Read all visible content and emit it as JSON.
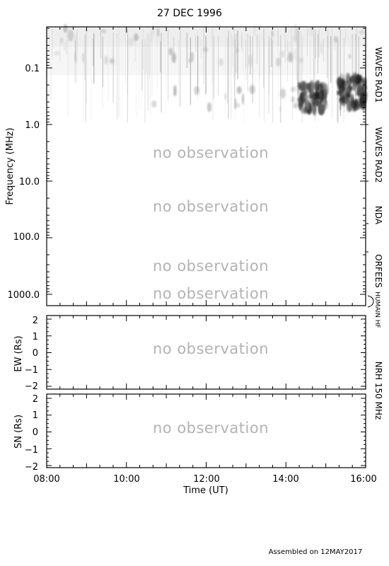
{
  "title": "27 DEC 1996",
  "footer": "Assembled on 12MAY2017",
  "colors": {
    "no_observation": "#b3b3b3",
    "axes": "#000000",
    "background": "#ffffff"
  },
  "chart_data": [
    {
      "type": "heatmap",
      "ylabel": "Frequency (MHz)",
      "y_scale": "log",
      "y_reversed": true,
      "ylim": [
        0.02,
        1500
      ],
      "yticks": [
        "0.1",
        "1.0",
        "10.0",
        "100.0",
        "1000.0"
      ],
      "xlim": [
        "08:00",
        "16:00"
      ],
      "grid": false,
      "instruments": [
        {
          "name": "WAVES RAD1",
          "freq_range_mhz": [
            0.02,
            1.0
          ],
          "status": ""
        },
        {
          "name": "WAVES RAD2",
          "freq_range_mhz": [
            1.0,
            14.0
          ],
          "status": "no observation"
        },
        {
          "name": "NDA",
          "freq_range_mhz": [
            14.0,
            70.0
          ],
          "status": "no observation"
        },
        {
          "name": "ORFEES",
          "freq_range_mhz": [
            140.0,
            1000.0
          ],
          "status": "no observation"
        },
        {
          "name": "HUMAIN HF",
          "freq_range_mhz": [
            1000.0,
            1500.0
          ],
          "status": "no observation"
        }
      ],
      "emission_features": [
        {
          "start": "14:20",
          "end": "15:00",
          "freq_mhz": [
            0.2,
            0.6
          ],
          "intensity": "strong"
        },
        {
          "start": "15:20",
          "end": "16:00",
          "freq_mhz": [
            0.15,
            0.5
          ],
          "intensity": "strong"
        },
        {
          "start": "08:00",
          "end": "16:00",
          "freq_mhz": [
            0.02,
            0.08
          ],
          "intensity": "weak"
        }
      ]
    },
    {
      "type": "scatter",
      "ylabel": "EW (Rs)",
      "ylim": [
        -2,
        2
      ],
      "yticks": [
        "2",
        "1",
        "0",
        "−1",
        "−2"
      ],
      "xlim": [
        "08:00",
        "16:00"
      ],
      "status": "no observation"
    },
    {
      "type": "scatter",
      "ylabel": "SN (Rs)",
      "ylim": [
        -2,
        2
      ],
      "yticks": [
        "2",
        "1",
        "0",
        "−1",
        "−2"
      ],
      "xlim": [
        "08:00",
        "16:00"
      ],
      "xticks": [
        "08:00",
        "10:00",
        "12:00",
        "14:00",
        "16:00"
      ],
      "xlabel": "Time (UT)",
      "status": "no observation",
      "side_label": "NRH 150 MHz"
    }
  ]
}
